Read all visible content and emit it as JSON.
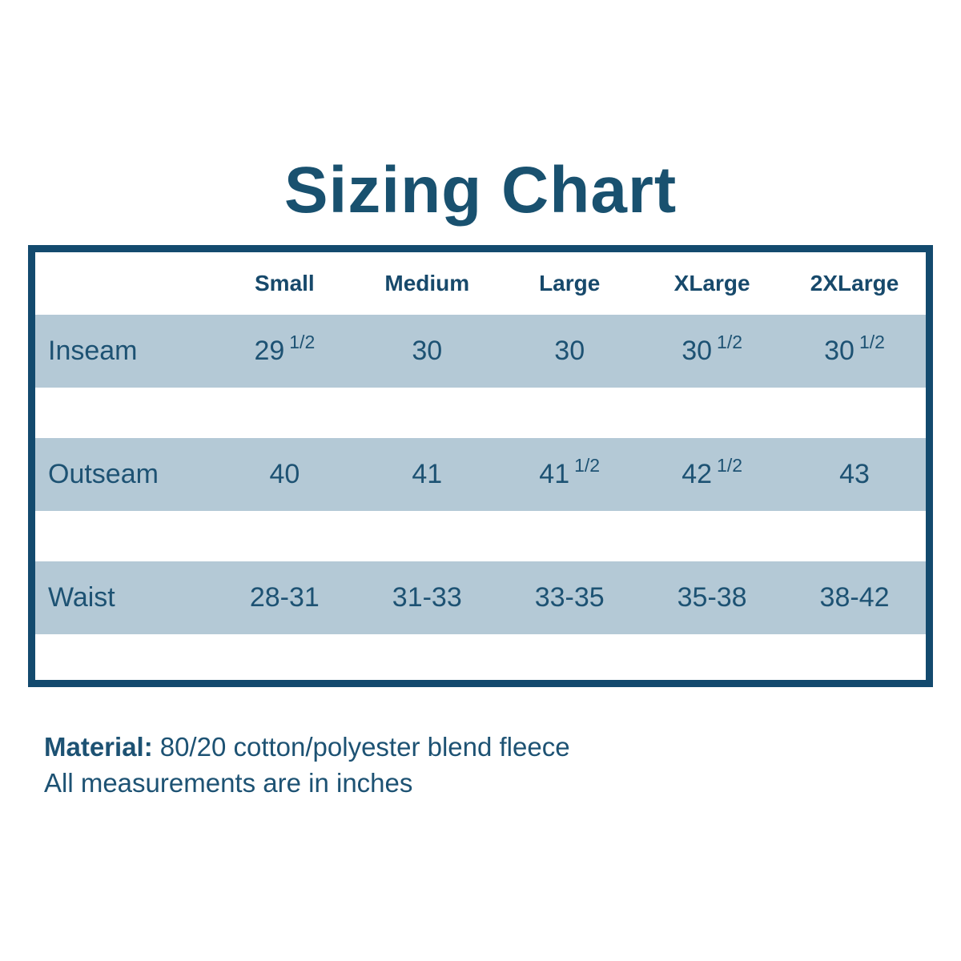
{
  "title": "Sizing Chart",
  "colors": {
    "accent_dark": "#134a6e",
    "text_teal": "#1d5273",
    "row_background": "#b4c9d6",
    "page_background": "#ffffff"
  },
  "table": {
    "columns": [
      "Small",
      "Medium",
      "Large",
      "XLarge",
      "2XLarge"
    ],
    "rows": [
      {
        "label": "Inseam",
        "values": [
          {
            "main": "29",
            "sup": "1/2"
          },
          {
            "main": "30",
            "sup": null
          },
          {
            "main": "30",
            "sup": null
          },
          {
            "main": "30",
            "sup": "1/2"
          },
          {
            "main": "30",
            "sup": "1/2"
          }
        ]
      },
      {
        "label": "Outseam",
        "values": [
          {
            "main": "40",
            "sup": null
          },
          {
            "main": "41",
            "sup": null
          },
          {
            "main": "41",
            "sup": "1/2"
          },
          {
            "main": "42",
            "sup": "1/2"
          },
          {
            "main": "43",
            "sup": null
          }
        ]
      },
      {
        "label": "Waist",
        "values": [
          {
            "main": "28-31",
            "sup": null
          },
          {
            "main": "31-33",
            "sup": null
          },
          {
            "main": "33-35",
            "sup": null
          },
          {
            "main": "35-38",
            "sup": null
          },
          {
            "main": "38-42",
            "sup": null
          }
        ]
      }
    ]
  },
  "footer": {
    "material_label": "Material:",
    "material_text": "80/20 cotton/polyester blend fleece",
    "note": "All measurements are in inches"
  }
}
